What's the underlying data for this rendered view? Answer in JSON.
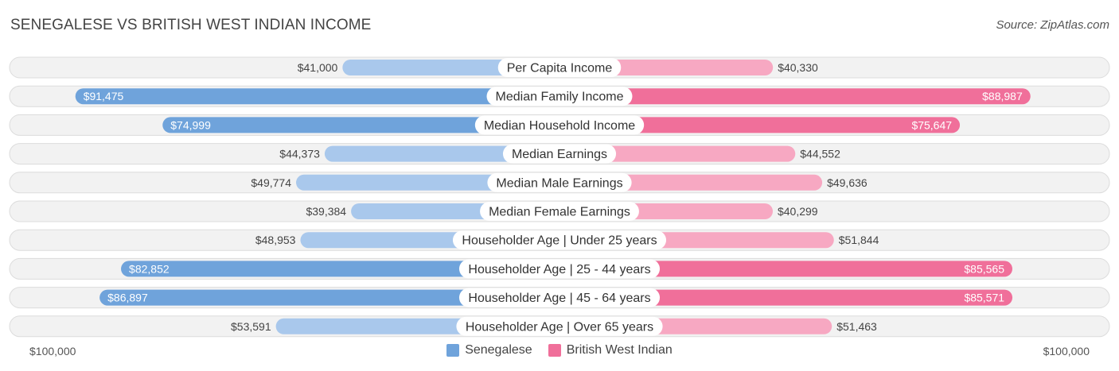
{
  "chart_data": {
    "type": "bar",
    "title": "SENEGALESE VS BRITISH WEST INDIAN INCOME",
    "source": "Source: ZipAtlas.com",
    "categories": [
      "Per Capita Income",
      "Median Family Income",
      "Median Household Income",
      "Median Earnings",
      "Median Male Earnings",
      "Median Female Earnings",
      "Householder Age | Under 25 years",
      "Householder Age | 25 - 44 years",
      "Householder Age | 45 - 64 years",
      "Householder Age | Over 65 years"
    ],
    "series": [
      {
        "name": "Senegalese",
        "color": "#6fa3db",
        "light_color": "#a9c8ec",
        "values": [
          41000,
          91475,
          74999,
          44373,
          49774,
          39384,
          48953,
          82852,
          86897,
          53591
        ],
        "labels": [
          "$41,000",
          "$91,475",
          "$74,999",
          "$44,373",
          "$49,774",
          "$39,384",
          "$48,953",
          "$82,852",
          "$86,897",
          "$53,591"
        ]
      },
      {
        "name": "British West Indian",
        "color": "#f06f9a",
        "light_color": "#f7a8c2",
        "values": [
          40330,
          88987,
          75647,
          44552,
          49636,
          40299,
          51844,
          85565,
          85571,
          51463
        ],
        "labels": [
          "$40,330",
          "$88,987",
          "$75,647",
          "$44,552",
          "$49,636",
          "$40,299",
          "$51,844",
          "$85,565",
          "$85,571",
          "$51,463"
        ]
      }
    ],
    "axis": {
      "max": 100000,
      "left_label": "$100,000",
      "right_label": "$100,000"
    },
    "inside_label_threshold": 70000,
    "legend_position": "bottom-center"
  }
}
